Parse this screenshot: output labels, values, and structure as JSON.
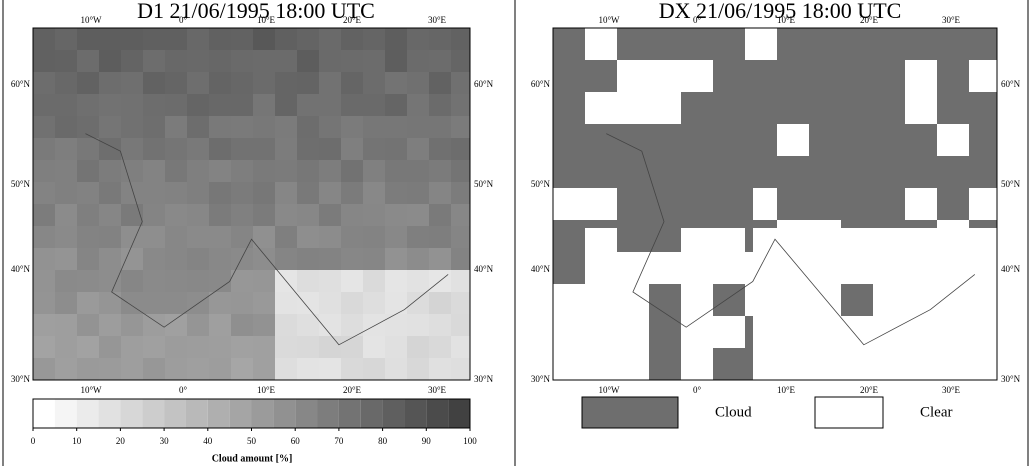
{
  "left": {
    "title": "D1 21/06/1995 18:00 UTC",
    "lon_ticks": [
      "10°W",
      "0°",
      "10°E",
      "20°E",
      "30°E"
    ],
    "lat_ticks": [
      "60°N",
      "50°N",
      "40°N",
      "30°N"
    ],
    "colorbar": {
      "ticks": [
        0,
        10,
        20,
        30,
        40,
        50,
        60,
        70,
        80,
        90,
        100
      ],
      "label": "Cloud amount [%]"
    }
  },
  "right": {
    "title": "DX 21/06/1995 18:00 UTC",
    "lon_ticks": [
      "10°W",
      "0°",
      "10°E",
      "20°E",
      "30°E"
    ],
    "lat_ticks": [
      "60°N",
      "50°N",
      "40°N",
      "30°N"
    ],
    "legend": [
      "Cloud",
      "Clear"
    ]
  }
}
